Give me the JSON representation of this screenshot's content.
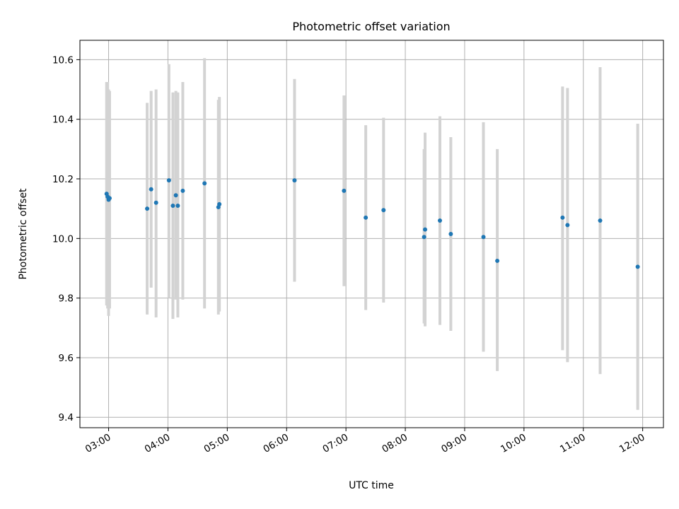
{
  "chart_data": {
    "type": "scatter",
    "title": "Photometric offset variation",
    "xlabel": "UTC time",
    "ylabel": "Photometric offset",
    "grid": true,
    "x_axis": {
      "type": "time",
      "range": [
        "02:31",
        "12:21"
      ],
      "ticks": [
        "03:00",
        "04:00",
        "05:00",
        "06:00",
        "07:00",
        "08:00",
        "09:00",
        "10:00",
        "11:00",
        "12:00"
      ]
    },
    "y_axis": {
      "range": [
        9.365,
        10.665
      ],
      "ticks": [
        "9.4",
        "9.6",
        "9.8",
        "10.0",
        "10.2",
        "10.4",
        "10.6"
      ]
    },
    "marker_color": "#1f77b4",
    "errorbar_color": "#d3d3d3",
    "points": [
      {
        "t": "02:58",
        "y": 10.15,
        "lo": 9.775,
        "hi": 10.525
      },
      {
        "t": "02:59",
        "y": 10.14,
        "lo": 9.765,
        "hi": 10.525
      },
      {
        "t": "03:00",
        "y": 10.13,
        "lo": 9.74,
        "hi": 10.5
      },
      {
        "t": "03:01",
        "y": 10.135,
        "lo": 9.765,
        "hi": 10.495
      },
      {
        "t": "03:39",
        "y": 10.1,
        "lo": 9.745,
        "hi": 10.455
      },
      {
        "t": "03:43",
        "y": 10.165,
        "lo": 9.835,
        "hi": 10.495
      },
      {
        "t": "03:48",
        "y": 10.12,
        "lo": 9.735,
        "hi": 10.5
      },
      {
        "t": "04:01",
        "y": 10.195,
        "lo": 9.8,
        "hi": 10.585
      },
      {
        "t": "04:05",
        "y": 10.11,
        "lo": 9.73,
        "hi": 10.49
      },
      {
        "t": "04:08",
        "y": 10.145,
        "lo": 9.795,
        "hi": 10.495
      },
      {
        "t": "04:10",
        "y": 10.11,
        "lo": 9.735,
        "hi": 10.49
      },
      {
        "t": "04:15",
        "y": 10.16,
        "lo": 9.795,
        "hi": 10.525
      },
      {
        "t": "04:37",
        "y": 10.185,
        "lo": 9.765,
        "hi": 10.605
      },
      {
        "t": "04:51",
        "y": 10.105,
        "lo": 9.745,
        "hi": 10.465
      },
      {
        "t": "04:52",
        "y": 10.115,
        "lo": 9.755,
        "hi": 10.475
      },
      {
        "t": "06:08",
        "y": 10.195,
        "lo": 9.855,
        "hi": 10.535
      },
      {
        "t": "06:58",
        "y": 10.16,
        "lo": 9.84,
        "hi": 10.48
      },
      {
        "t": "07:20",
        "y": 10.07,
        "lo": 9.76,
        "hi": 10.38
      },
      {
        "t": "07:38",
        "y": 10.095,
        "lo": 9.785,
        "hi": 10.405
      },
      {
        "t": "08:19",
        "y": 10.005,
        "lo": 9.715,
        "hi": 10.3
      },
      {
        "t": "08:20",
        "y": 10.03,
        "lo": 9.705,
        "hi": 10.355
      },
      {
        "t": "08:35",
        "y": 10.06,
        "lo": 9.71,
        "hi": 10.41
      },
      {
        "t": "08:46",
        "y": 10.015,
        "lo": 9.69,
        "hi": 10.34
      },
      {
        "t": "09:19",
        "y": 10.005,
        "lo": 9.62,
        "hi": 10.39
      },
      {
        "t": "09:33",
        "y": 9.925,
        "lo": 9.555,
        "hi": 10.3
      },
      {
        "t": "10:39",
        "y": 10.07,
        "lo": 9.625,
        "hi": 10.51
      },
      {
        "t": "10:44",
        "y": 10.045,
        "lo": 9.585,
        "hi": 10.505
      },
      {
        "t": "11:17",
        "y": 10.06,
        "lo": 9.545,
        "hi": 10.575
      },
      {
        "t": "11:55",
        "y": 9.905,
        "lo": 9.425,
        "hi": 10.385
      }
    ]
  }
}
